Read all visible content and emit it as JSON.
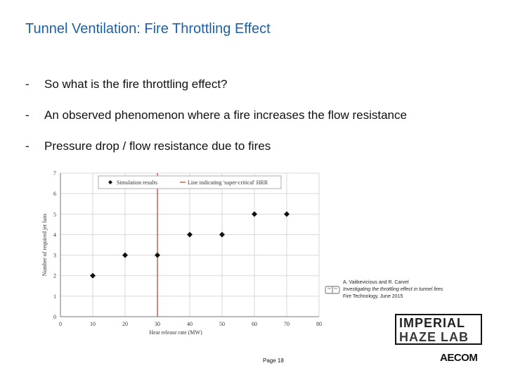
{
  "slide": {
    "title": "Tunnel Ventilation: Fire Throttling Effect",
    "bullets": [
      "So what is the fire throttling effect?",
      "An observed phenomenon where a fire increases the flow resistance",
      "Pressure drop / flow resistance due to fires"
    ],
    "bullet_marker": "-",
    "page_label": "Page 18"
  },
  "citation": {
    "authors": "A. Vaitkevicious and R. Carvel",
    "title": "Investigating the throttling effect in tunnel fires",
    "source": "Fire Technology, June 2015"
  },
  "logos": {
    "imperial_line1": "IMPERIAL",
    "imperial_line2": "HAZE LAB",
    "aecom": "AECOM"
  },
  "chart_data": {
    "type": "scatter",
    "xlabel": "Heat release rate (MW)",
    "ylabel": "Number of required jet fans",
    "xlim": [
      0,
      80
    ],
    "ylim": [
      0,
      7
    ],
    "xticks": [
      0,
      10,
      20,
      30,
      40,
      50,
      60,
      70,
      80
    ],
    "yticks": [
      0,
      1,
      2,
      3,
      4,
      5,
      6,
      7
    ],
    "grid": true,
    "legend_position": "top-center",
    "series": [
      {
        "name": "Simulation results",
        "x": [
          10,
          20,
          30,
          40,
          50,
          60,
          70
        ],
        "y": [
          2,
          3,
          3,
          4,
          4,
          5,
          5
        ]
      }
    ],
    "reference_line": {
      "name": "Line indicating 'super-critical' HRR",
      "x": 30,
      "color": "#c0392b"
    }
  }
}
